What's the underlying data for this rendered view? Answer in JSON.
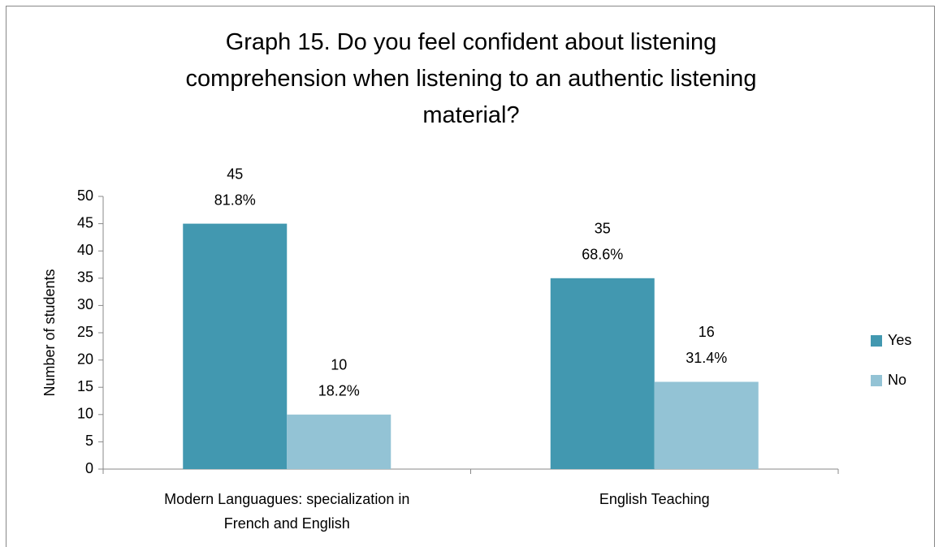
{
  "chart_data": {
    "type": "bar",
    "title": "Graph 15. Do you feel confident about listening comprehension when listening to an authentic listening material?",
    "y_label": "Number of students",
    "categories": [
      "Modern Languagues: specialization in French and English",
      "English Teaching"
    ],
    "series": [
      {
        "name": "Yes",
        "color": "#4298b0",
        "values": [
          45,
          35
        ],
        "percent_labels": [
          "81.8%",
          "68.6%"
        ]
      },
      {
        "name": "No",
        "color": "#93c3d5",
        "values": [
          10,
          16
        ],
        "percent_labels": [
          "18.2%",
          "31.4%"
        ]
      }
    ],
    "ylim": [
      0,
      50
    ],
    "yticks": [
      0,
      5,
      10,
      15,
      20,
      25,
      30,
      35,
      40,
      45,
      50
    ],
    "grid": false,
    "legend": "right"
  }
}
